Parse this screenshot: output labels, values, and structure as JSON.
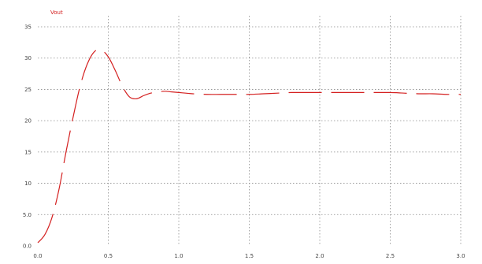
{
  "chart_data": {
    "type": "line",
    "title": "",
    "xlabel": "",
    "ylabel": "",
    "xlim": [
      0.0,
      3.0
    ],
    "ylim": [
      0,
      35
    ],
    "x_ticks": [
      0.0,
      0.5,
      1.0,
      1.5,
      2.0,
      2.5,
      3.0
    ],
    "x_tick_labels": [
      "0.0",
      "0.5",
      "1.0",
      "1.5",
      "2.0",
      "2.5",
      "3.0"
    ],
    "y_ticks": [
      0,
      5,
      10,
      15,
      20,
      25,
      30,
      35
    ],
    "y_tick_labels": [
      "0.0",
      "5.0",
      "10",
      "15",
      "20",
      "25",
      "30",
      "35"
    ],
    "grid": true,
    "colors": {
      "series": "#d42020",
      "grid": "#8a8a8a",
      "text": "#444444"
    },
    "series": [
      {
        "name": "",
        "legend_label": "Vout",
        "color": "#d42020",
        "dashed": true,
        "x": [
          0.0,
          0.05,
          0.1,
          0.15,
          0.2,
          0.25,
          0.3,
          0.35,
          0.4,
          0.45,
          0.5,
          0.55,
          0.6,
          0.65,
          0.7,
          0.75,
          0.8,
          0.85,
          0.9,
          0.95,
          1.0,
          1.05,
          1.1,
          1.2,
          1.3,
          1.4,
          1.5,
          1.6,
          1.7,
          1.8,
          1.9,
          2.0,
          2.1,
          2.2,
          2.3,
          2.4,
          2.5,
          2.6,
          2.7,
          2.8,
          2.9,
          3.0
        ],
        "y": [
          0.5,
          1.8,
          4.5,
          9.0,
          15.0,
          20.5,
          25.5,
          29.0,
          31.0,
          31.3,
          30.2,
          28.0,
          25.5,
          23.8,
          23.5,
          24.0,
          24.4,
          24.6,
          24.7,
          24.6,
          24.5,
          24.4,
          24.3,
          24.2,
          24.2,
          24.2,
          24.2,
          24.3,
          24.4,
          24.5,
          24.5,
          24.5,
          24.5,
          24.5,
          24.5,
          24.5,
          24.5,
          24.4,
          24.3,
          24.3,
          24.2,
          24.2
        ]
      }
    ]
  }
}
